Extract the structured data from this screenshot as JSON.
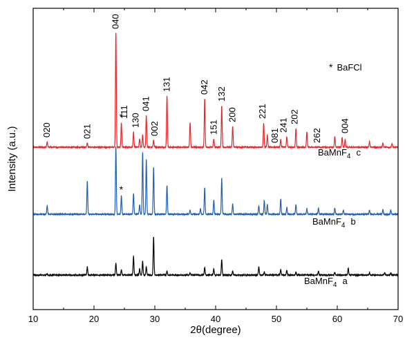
{
  "chart_data": {
    "type": "line",
    "xlabel": "2θ(degree)",
    "ylabel": "Intensity (a.u.)",
    "xlim": [
      10,
      70
    ],
    "x_ticks": [
      "10",
      "20",
      "30",
      "40",
      "50",
      "60",
      "70"
    ],
    "grid": false,
    "legend_marker": {
      "symbol": "*",
      "text": "BaFCl"
    },
    "series": [
      {
        "id": "a",
        "color": "#000000",
        "label_parts": {
          "main": "BaMnF",
          "sub": "4",
          "suffix": "a"
        },
        "peaks": [
          {
            "x": 12.3,
            "y": 2
          },
          {
            "x": 18.9,
            "y": 12
          },
          {
            "x": 23.6,
            "y": 17
          },
          {
            "x": 24.5,
            "y": 8
          },
          {
            "x": 26.5,
            "y": 27
          },
          {
            "x": 27.5,
            "y": 9
          },
          {
            "x": 28.0,
            "y": 20
          },
          {
            "x": 28.6,
            "y": 12
          },
          {
            "x": 29.8,
            "y": 55
          },
          {
            "x": 32.0,
            "y": 6
          },
          {
            "x": 35.8,
            "y": 3
          },
          {
            "x": 38.2,
            "y": 11
          },
          {
            "x": 39.7,
            "y": 9
          },
          {
            "x": 41.0,
            "y": 22
          },
          {
            "x": 42.8,
            "y": 6
          },
          {
            "x": 47.1,
            "y": 12
          },
          {
            "x": 48.0,
            "y": 5
          },
          {
            "x": 50.7,
            "y": 8
          },
          {
            "x": 51.7,
            "y": 7
          },
          {
            "x": 53.2,
            "y": 4
          },
          {
            "x": 56.9,
            "y": 6
          },
          {
            "x": 59.6,
            "y": 4
          },
          {
            "x": 61.8,
            "y": 10
          },
          {
            "x": 65.3,
            "y": 3
          },
          {
            "x": 67.8,
            "y": 3
          },
          {
            "x": 68.8,
            "y": 3
          }
        ]
      },
      {
        "id": "b",
        "color": "#1f5fb4",
        "label_parts": {
          "main": "BaMnF",
          "sub": "4",
          "suffix": "b"
        },
        "peaks": [
          {
            "x": 12.3,
            "y": 12
          },
          {
            "x": 18.9,
            "y": 48
          },
          {
            "x": 23.6,
            "y": 98
          },
          {
            "x": 24.5,
            "y": 27
          },
          {
            "x": 26.5,
            "y": 30
          },
          {
            "x": 27.5,
            "y": 14
          },
          {
            "x": 28.0,
            "y": 90
          },
          {
            "x": 28.6,
            "y": 80
          },
          {
            "x": 29.8,
            "y": 68
          },
          {
            "x": 32.0,
            "y": 42
          },
          {
            "x": 35.8,
            "y": 6
          },
          {
            "x": 37.5,
            "y": 8
          },
          {
            "x": 38.2,
            "y": 38
          },
          {
            "x": 39.7,
            "y": 20
          },
          {
            "x": 41.0,
            "y": 52
          },
          {
            "x": 42.8,
            "y": 15
          },
          {
            "x": 47.1,
            "y": 12
          },
          {
            "x": 48.0,
            "y": 20
          },
          {
            "x": 48.5,
            "y": 14
          },
          {
            "x": 50.7,
            "y": 22
          },
          {
            "x": 51.7,
            "y": 10
          },
          {
            "x": 53.2,
            "y": 14
          },
          {
            "x": 55.0,
            "y": 8
          },
          {
            "x": 56.9,
            "y": 9
          },
          {
            "x": 59.6,
            "y": 9
          },
          {
            "x": 61.0,
            "y": 6
          },
          {
            "x": 65.3,
            "y": 6
          },
          {
            "x": 67.5,
            "y": 7
          },
          {
            "x": 68.8,
            "y": 6
          }
        ]
      },
      {
        "id": "c",
        "color": "#e8262a",
        "label_parts": {
          "main": "BaMnF",
          "sub": "4",
          "suffix": "c"
        },
        "peaks": [
          {
            "x": 12.3,
            "y": 8
          },
          {
            "x": 18.9,
            "y": 6
          },
          {
            "x": 23.6,
            "y": 165
          },
          {
            "x": 24.5,
            "y": 35
          },
          {
            "x": 26.5,
            "y": 22
          },
          {
            "x": 27.5,
            "y": 12
          },
          {
            "x": 28.0,
            "y": 18
          },
          {
            "x": 28.6,
            "y": 46
          },
          {
            "x": 29.8,
            "y": 10
          },
          {
            "x": 32.0,
            "y": 74
          },
          {
            "x": 35.8,
            "y": 36
          },
          {
            "x": 38.2,
            "y": 70
          },
          {
            "x": 39.7,
            "y": 12
          },
          {
            "x": 41.0,
            "y": 60
          },
          {
            "x": 42.8,
            "y": 30
          },
          {
            "x": 47.9,
            "y": 35
          },
          {
            "x": 48.5,
            "y": 18
          },
          {
            "x": 50.7,
            "y": 11
          },
          {
            "x": 51.7,
            "y": 15
          },
          {
            "x": 53.2,
            "y": 27
          },
          {
            "x": 55.0,
            "y": 22
          },
          {
            "x": 59.6,
            "y": 16
          },
          {
            "x": 60.8,
            "y": 14
          },
          {
            "x": 61.3,
            "y": 11
          },
          {
            "x": 65.3,
            "y": 8
          },
          {
            "x": 67.5,
            "y": 6
          },
          {
            "x": 69.0,
            "y": 5
          }
        ]
      }
    ],
    "peak_labels": [
      {
        "text": "020",
        "x": 12.3,
        "series": "c"
      },
      {
        "text": "021",
        "x": 18.9,
        "series": "c"
      },
      {
        "text": "040",
        "x": 23.6,
        "series": "c"
      },
      {
        "text": "111",
        "x": 25.0,
        "series": "c"
      },
      {
        "text": "130",
        "x": 26.9,
        "series": "c"
      },
      {
        "text": "041",
        "x": 28.6,
        "series": "c"
      },
      {
        "text": "002",
        "x": 30.0,
        "series": "c"
      },
      {
        "text": "131",
        "x": 32.0,
        "series": "c"
      },
      {
        "text": "042",
        "x": 38.2,
        "series": "c"
      },
      {
        "text": "151",
        "x": 39.7,
        "series": "c"
      },
      {
        "text": "132",
        "x": 41.0,
        "series": "c"
      },
      {
        "text": "200",
        "x": 42.8,
        "series": "c"
      },
      {
        "text": "221",
        "x": 47.7,
        "series": "c"
      },
      {
        "text": "081",
        "x": 49.8,
        "series": "c"
      },
      {
        "text": "241",
        "x": 51.2,
        "series": "c"
      },
      {
        "text": "202",
        "x": 53.0,
        "series": "c"
      },
      {
        "text": "262",
        "x": 56.7,
        "series": "c"
      },
      {
        "text": "004",
        "x": 61.3,
        "series": "c"
      }
    ],
    "star_marks": [
      {
        "symbol": "*",
        "x": 24.5,
        "series": "c"
      },
      {
        "symbol": "*",
        "x": 24.5,
        "series": "b"
      }
    ]
  }
}
